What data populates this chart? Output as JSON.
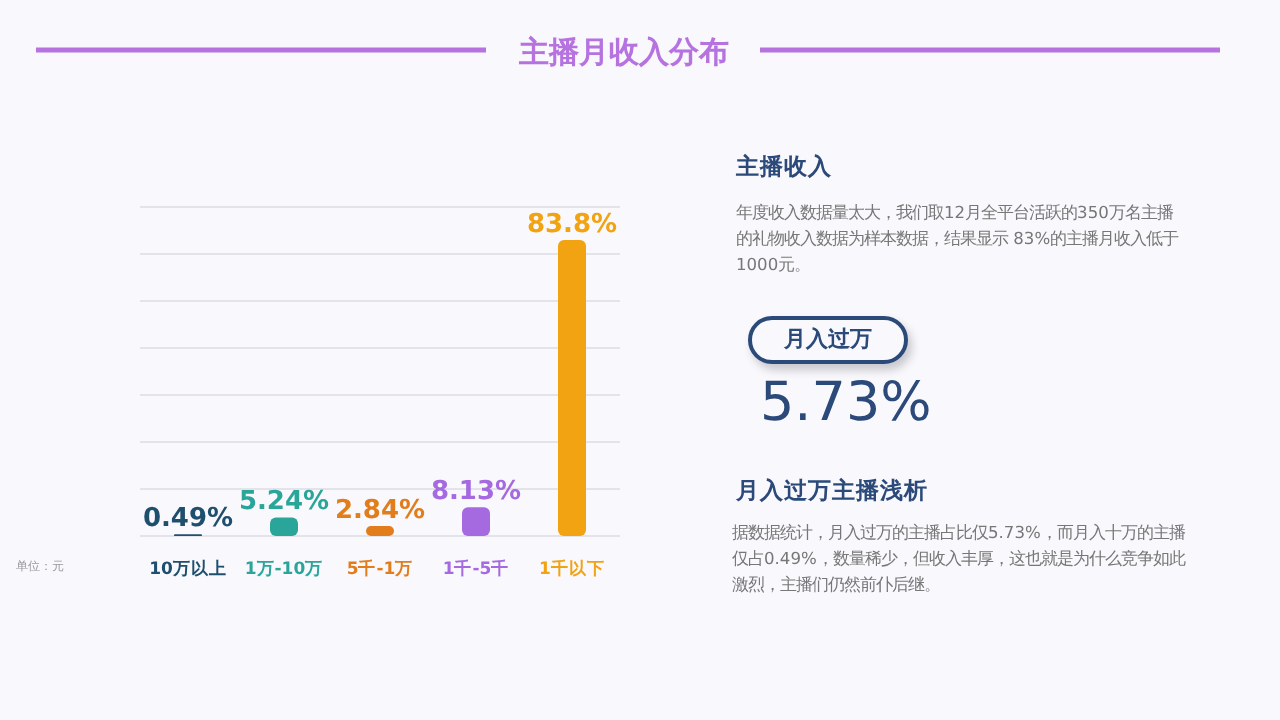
{
  "chart_data": {
    "type": "bar",
    "title": "主播月收入分布",
    "categories": [
      "10万以上",
      "1万-10万",
      "5千-1万",
      "1千-5千",
      "1千以下"
    ],
    "values": [
      0.49,
      5.24,
      2.84,
      8.13,
      83.8
    ],
    "colors": [
      "#1e4f6e",
      "#2aa59a",
      "#e27d1c",
      "#a56ae0",
      "#f2a312"
    ],
    "value_labels": [
      "0.49%",
      "5.24%",
      "2.84%",
      "8.13%",
      "83.8%"
    ],
    "grid": "y",
    "annotations": [
      "单位：元",
      "主播收入",
      "年度收入数据量太大，我们取12月全平台活跃的350万名主播的礼物收入数据为样本数据，结果显示 83%的主播月收入低于1000元。",
      "月入过万",
      "5.73%",
      "月入过万主播浅析",
      "据数据统计，月入过万的主播占比仅5.73%，而月入十万的主播仅占0.49%，数量稀少，但收入丰厚，这也就是为什么竞争如此激烈，主播们仍然前仆后继。"
    ]
  }
}
